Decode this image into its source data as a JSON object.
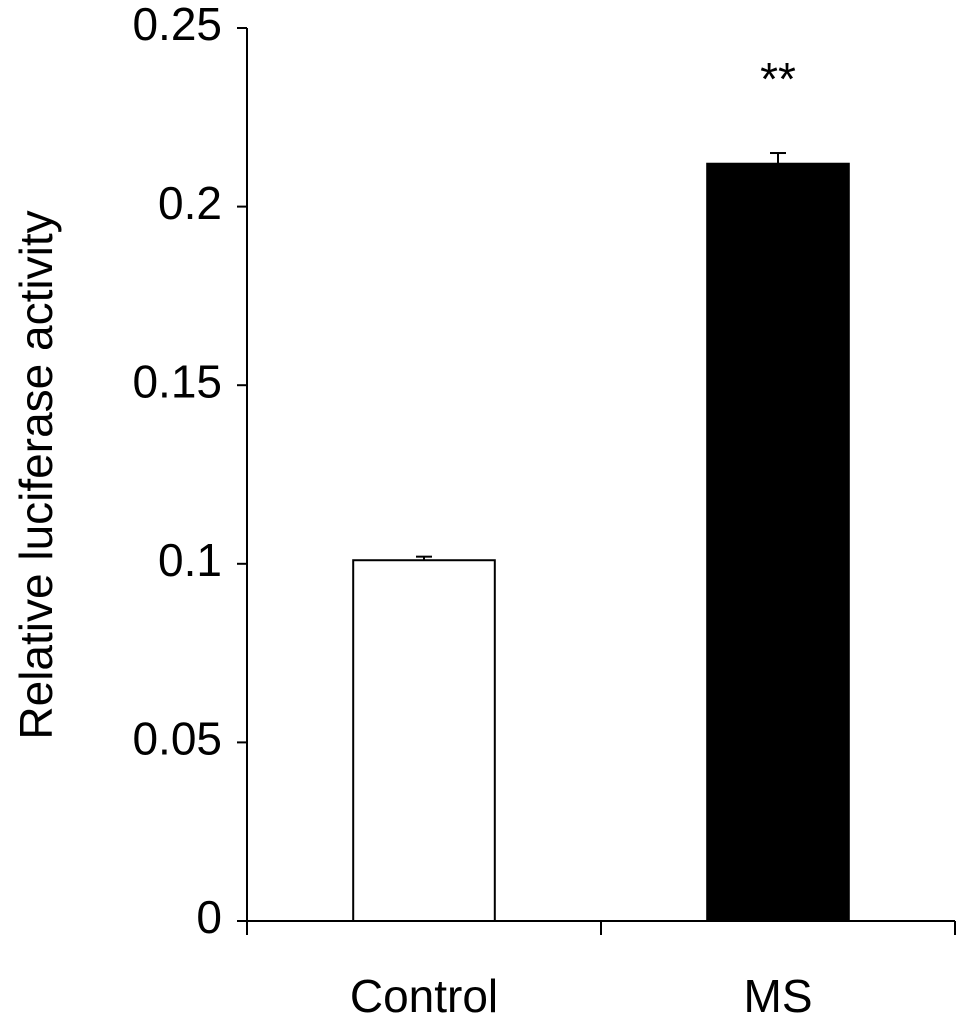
{
  "chart_data": {
    "type": "bar",
    "y_label": "Relative luciferase activity",
    "categories": [
      "Control",
      "MS"
    ],
    "values": [
      0.101,
      0.212
    ],
    "errors": [
      0.001,
      0.003
    ],
    "colors": [
      "#ffffff",
      "#000000"
    ],
    "significance": [
      null,
      "**"
    ],
    "ylim": [
      0,
      0.25
    ],
    "yticks": [
      0,
      0.05,
      0.1,
      0.15,
      0.2,
      0.25
    ],
    "grid": false
  }
}
